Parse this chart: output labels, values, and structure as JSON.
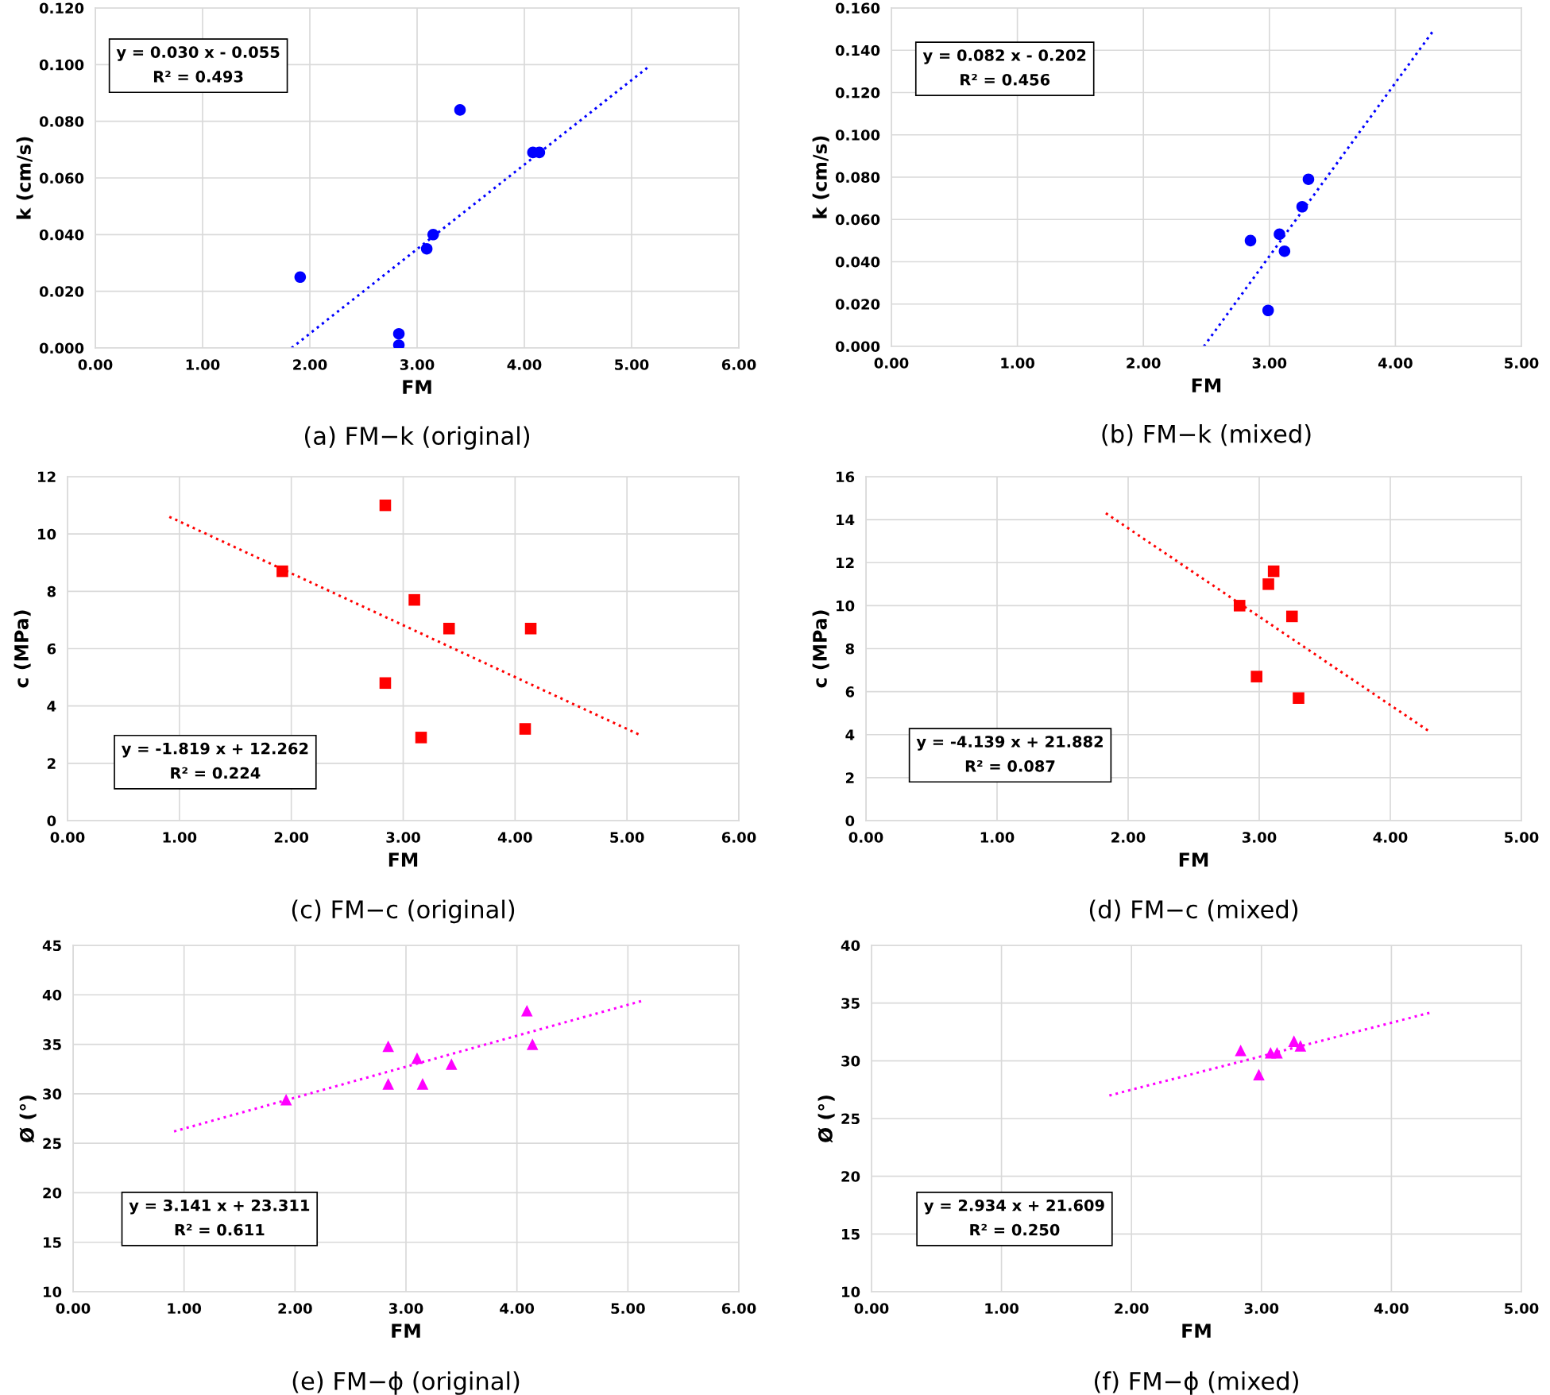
{
  "chart_data": [
    {
      "type": "scatter",
      "title": "(a) FM−k (original)",
      "xlabel": "FM",
      "ylabel": "k (cm/s)",
      "annotations": [
        "y = 0.030 x - 0.055",
        "R² = 0.493"
      ],
      "xlim": [
        0,
        6
      ],
      "ylim": [
        0,
        0.12
      ],
      "xticks": [
        {
          "value": 0,
          "label": "0.00"
        },
        {
          "value": 1,
          "label": "1.00"
        },
        {
          "value": 2,
          "label": "2.00"
        },
        {
          "value": 3,
          "label": "3.00"
        },
        {
          "value": 4,
          "label": "4.00"
        },
        {
          "value": 5,
          "label": "5.00"
        },
        {
          "value": 6,
          "label": "6.00"
        }
      ],
      "yticks": [
        {
          "value": 0,
          "label": "0.000"
        },
        {
          "value": 0.02,
          "label": "0.020"
        },
        {
          "value": 0.04,
          "label": "0.040"
        },
        {
          "value": 0.06,
          "label": "0.060"
        },
        {
          "value": 0.08,
          "label": "0.080"
        },
        {
          "value": 0.1,
          "label": "0.100"
        },
        {
          "value": 0.12,
          "label": "0.120"
        }
      ],
      "grid": true,
      "series": [
        {
          "color": "#0000ff",
          "marker": "circle",
          "x": [
            1.91,
            2.83,
            2.83,
            3.09,
            3.15,
            3.4,
            4.08,
            4.14
          ],
          "values": [
            0.025,
            0.005,
            0.001,
            0.035,
            0.04,
            0.084,
            0.069,
            0.069
          ]
        },
        {
          "type": "line",
          "color": "#0000ff",
          "line_style": "dotted",
          "x": [
            1.83,
            5.15
          ],
          "values": [
            0.0,
            0.099
          ]
        }
      ]
    },
    {
      "type": "scatter",
      "title": "(b) FM−k (mixed)",
      "xlabel": "FM",
      "ylabel": "k (cm/s)",
      "annotations": [
        "y = 0.082 x - 0.202",
        "R² = 0.456"
      ],
      "xlim": [
        0,
        5
      ],
      "ylim": [
        0,
        0.16
      ],
      "xticks": [
        {
          "value": 0,
          "label": "0.00"
        },
        {
          "value": 1,
          "label": "1.00"
        },
        {
          "value": 2,
          "label": "2.00"
        },
        {
          "value": 3,
          "label": "3.00"
        },
        {
          "value": 4,
          "label": "4.00"
        },
        {
          "value": 5,
          "label": "5.00"
        }
      ],
      "yticks": [
        {
          "value": 0,
          "label": "0.000"
        },
        {
          "value": 0.02,
          "label": "0.020"
        },
        {
          "value": 0.04,
          "label": "0.040"
        },
        {
          "value": 0.06,
          "label": "0.060"
        },
        {
          "value": 0.08,
          "label": "0.080"
        },
        {
          "value": 0.1,
          "label": "0.100"
        },
        {
          "value": 0.12,
          "label": "0.120"
        },
        {
          "value": 0.14,
          "label": "0.140"
        },
        {
          "value": 0.16,
          "label": "0.160"
        }
      ],
      "grid": true,
      "series": [
        {
          "color": "#0000ff",
          "marker": "circle",
          "x": [
            2.85,
            2.99,
            3.08,
            3.12,
            3.26,
            3.31
          ],
          "values": [
            0.05,
            0.017,
            0.053,
            0.045,
            0.066,
            0.079
          ]
        },
        {
          "type": "line",
          "color": "#0000ff",
          "line_style": "dotted",
          "x": [
            2.48,
            4.31
          ],
          "values": [
            0.0,
            0.15
          ]
        }
      ]
    },
    {
      "type": "scatter",
      "title": "(c) FM−c (original)",
      "xlabel": "FM",
      "ylabel": "c (MPa)",
      "annotations": [
        "y = -1.819 x + 12.262",
        "R² = 0.224"
      ],
      "xlim": [
        0,
        6
      ],
      "ylim": [
        0,
        12
      ],
      "xticks": [
        {
          "value": 0,
          "label": "0.00"
        },
        {
          "value": 1,
          "label": "1.00"
        },
        {
          "value": 2,
          "label": "2.00"
        },
        {
          "value": 3,
          "label": "3.00"
        },
        {
          "value": 4,
          "label": "4.00"
        },
        {
          "value": 5,
          "label": "5.00"
        },
        {
          "value": 6,
          "label": "6.00"
        }
      ],
      "yticks": [
        0,
        2,
        4,
        6,
        8,
        10,
        12
      ],
      "grid": true,
      "series": [
        {
          "color": "#ff0000",
          "marker": "square",
          "x": [
            1.92,
            2.84,
            2.84,
            3.1,
            3.16,
            3.41,
            4.09,
            4.14
          ],
          "values": [
            8.7,
            11.0,
            4.8,
            7.7,
            2.9,
            6.7,
            3.2,
            6.7
          ]
        },
        {
          "type": "line",
          "color": "#ff0000",
          "line_style": "dotted",
          "x": [
            0.91,
            5.11
          ],
          "values": [
            10.6,
            3.0
          ]
        }
      ]
    },
    {
      "type": "scatter",
      "title": "(d) FM−c (mixed)",
      "xlabel": "FM",
      "ylabel": "c (MPa)",
      "annotations": [
        "y = -4.139 x + 21.882",
        "R² = 0.087"
      ],
      "xlim": [
        0,
        5
      ],
      "ylim": [
        0,
        16
      ],
      "xticks": [
        {
          "value": 0,
          "label": "0.00"
        },
        {
          "value": 1,
          "label": "1.00"
        },
        {
          "value": 2,
          "label": "2.00"
        },
        {
          "value": 3,
          "label": "3.00"
        },
        {
          "value": 4,
          "label": "4.00"
        },
        {
          "value": 5,
          "label": "5.00"
        }
      ],
      "yticks": [
        0,
        2,
        4,
        6,
        8,
        10,
        12,
        14,
        16
      ],
      "grid": true,
      "series": [
        {
          "color": "#ff0000",
          "marker": "square",
          "x": [
            2.85,
            2.98,
            3.07,
            3.11,
            3.25,
            3.3
          ],
          "values": [
            10.0,
            6.7,
            11.0,
            11.6,
            9.5,
            5.7
          ]
        },
        {
          "type": "line",
          "color": "#ff0000",
          "line_style": "dotted",
          "x": [
            1.83,
            4.31
          ],
          "values": [
            14.3,
            4.1
          ]
        }
      ]
    },
    {
      "type": "scatter",
      "title": "(e) FM−ϕ (original)",
      "xlabel": "FM",
      "ylabel": "Ø (°)",
      "annotations": [
        "y = 3.141 x + 23.311",
        "R² = 0.611"
      ],
      "xlim": [
        0,
        6
      ],
      "ylim": [
        10,
        45
      ],
      "xticks": [
        {
          "value": 0,
          "label": "0.00"
        },
        {
          "value": 1,
          "label": "1.00"
        },
        {
          "value": 2,
          "label": "2.00"
        },
        {
          "value": 3,
          "label": "3.00"
        },
        {
          "value": 4,
          "label": "4.00"
        },
        {
          "value": 5,
          "label": "5.00"
        },
        {
          "value": 6,
          "label": "6.00"
        }
      ],
      "yticks": [
        10,
        15,
        20,
        25,
        30,
        35,
        40,
        45
      ],
      "grid": true,
      "series": [
        {
          "color": "#ff00ff",
          "marker": "triangle",
          "x": [
            1.92,
            2.84,
            2.84,
            3.1,
            3.15,
            3.41,
            4.09,
            4.14
          ],
          "values": [
            29.4,
            34.8,
            31.0,
            33.6,
            31.0,
            33.0,
            38.4,
            35.0
          ]
        },
        {
          "type": "line",
          "color": "#ff00ff",
          "line_style": "dotted",
          "x": [
            0.91,
            5.13
          ],
          "values": [
            26.2,
            39.4
          ]
        }
      ]
    },
    {
      "type": "scatter",
      "title": "(f) FM−ϕ (mixed)",
      "xlabel": "FM",
      "ylabel": "Ø (°)",
      "annotations": [
        "y = 2.934 x + 21.609",
        "R² = 0.250"
      ],
      "xlim": [
        0,
        5
      ],
      "ylim": [
        10,
        40
      ],
      "xticks": [
        {
          "value": 0,
          "label": "0.00"
        },
        {
          "value": 1,
          "label": "1.00"
        },
        {
          "value": 2,
          "label": "2.00"
        },
        {
          "value": 3,
          "label": "3.00"
        },
        {
          "value": 4,
          "label": "4.00"
        },
        {
          "value": 5,
          "label": "5.00"
        }
      ],
      "yticks": [
        10,
        15,
        20,
        25,
        30,
        35,
        40
      ],
      "grid": true,
      "series": [
        {
          "color": "#ff00ff",
          "marker": "triangle",
          "x": [
            2.84,
            2.98,
            3.07,
            3.12,
            3.25,
            3.3
          ],
          "values": [
            30.9,
            28.8,
            30.7,
            30.7,
            31.7,
            31.3
          ]
        },
        {
          "type": "line",
          "color": "#ff00ff",
          "line_style": "dotted",
          "x": [
            1.83,
            4.31
          ],
          "values": [
            27.0,
            34.2
          ]
        }
      ]
    }
  ]
}
